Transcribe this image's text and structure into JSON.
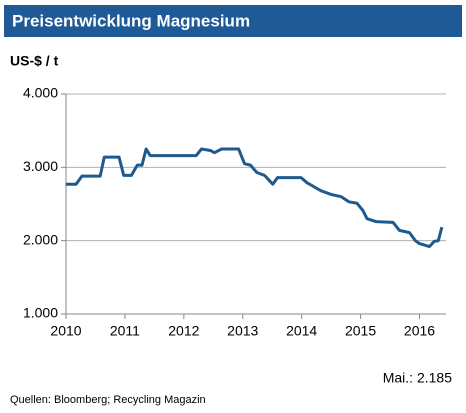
{
  "chart_data": {
    "type": "line",
    "title": "Preisentwicklung Magnesium",
    "y_label": "US-$ / t",
    "annotation": "Mai.: 2.185",
    "source": "Quellen: Bloomberg; Recycling Magazin",
    "x": [
      2010.0,
      2010.17,
      2010.27,
      2010.58,
      2010.65,
      2010.9,
      2010.98,
      2011.11,
      2011.21,
      2011.29,
      2011.36,
      2011.43,
      2012.21,
      2012.3,
      2012.45,
      2012.52,
      2012.64,
      2012.93,
      2013.03,
      2013.13,
      2013.24,
      2013.37,
      2013.51,
      2013.59,
      2013.99,
      2014.09,
      2014.22,
      2014.33,
      2014.5,
      2014.67,
      2014.8,
      2014.94,
      2015.04,
      2015.11,
      2015.26,
      2015.55,
      2015.66,
      2015.83,
      2015.93,
      2016.0,
      2016.17,
      2016.25,
      2016.32,
      2016.38
    ],
    "series": [
      {
        "name": "Magnesium",
        "color": "#1f5a8e",
        "values": [
          2770,
          2770,
          2880,
          2880,
          3140,
          3140,
          2890,
          2890,
          3030,
          3030,
          3250,
          3160,
          3160,
          3250,
          3230,
          3200,
          3250,
          3250,
          3050,
          3030,
          2930,
          2890,
          2770,
          2860,
          2860,
          2790,
          2730,
          2680,
          2630,
          2600,
          2530,
          2510,
          2410,
          2300,
          2260,
          2250,
          2140,
          2110,
          2000,
          1960,
          1920,
          1990,
          2000,
          2185
        ]
      }
    ],
    "xlim": [
      2010,
      2016.45
    ],
    "xticks": [
      2010,
      2011,
      2012,
      2013,
      2014,
      2015,
      2016
    ],
    "ylim": [
      1000,
      4000
    ],
    "yticks": [
      {
        "value": 1000,
        "label": "1.000"
      },
      {
        "value": 2000,
        "label": "2.000"
      },
      {
        "value": 3000,
        "label": "3.000"
      },
      {
        "value": 4000,
        "label": "4.000"
      }
    ],
    "grid": true
  }
}
